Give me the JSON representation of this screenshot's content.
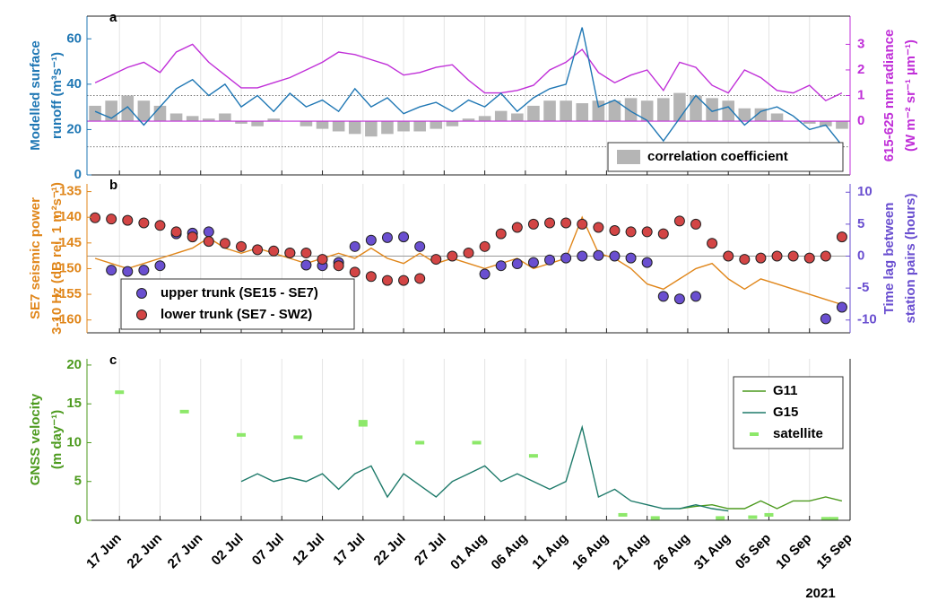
{
  "chart_data": [
    {
      "type": "combo",
      "label": "a",
      "ylabel": [
        "Modelled surface",
        "runoff (m³s⁻¹)"
      ],
      "ycolor": "#1f77b4",
      "y2label": [
        "615-625 nm radiance",
        "(W m⁻² sr⁻¹ µm⁻¹)"
      ],
      "y2color": "#c02fd8",
      "xlim": [
        "2021-06-13",
        "2021-09-15"
      ],
      "xticks": [
        "2021-06-17",
        "2021-06-22",
        "2021-06-27",
        "2021-07-02",
        "2021-07-07",
        "2021-07-12",
        "2021-07-17",
        "2021-07-22",
        "2021-07-27",
        "2021-08-01",
        "2021-08-06",
        "2021-08-11",
        "2021-08-16",
        "2021-08-21",
        "2021-08-26",
        "2021-08-31",
        "2021-09-05",
        "2021-09-10",
        "2021-09-15"
      ],
      "ylim": [
        0,
        70
      ],
      "yticks": [
        0,
        20,
        40,
        60
      ],
      "y2lim": [
        -2.1,
        4.1
      ],
      "y2ticks": [
        0,
        1,
        2,
        3
      ],
      "reference_lines": [
        1,
        -1
      ],
      "reference_style": "dotted",
      "legend": "lower right",
      "x": [
        "2021-06-14",
        "2021-06-16",
        "2021-06-18",
        "2021-06-20",
        "2021-06-22",
        "2021-06-24",
        "2021-06-26",
        "2021-06-28",
        "2021-06-30",
        "2021-07-02",
        "2021-07-04",
        "2021-07-06",
        "2021-07-08",
        "2021-07-10",
        "2021-07-12",
        "2021-07-14",
        "2021-07-16",
        "2021-07-18",
        "2021-07-20",
        "2021-07-22",
        "2021-07-24",
        "2021-07-26",
        "2021-07-28",
        "2021-07-30",
        "2021-08-01",
        "2021-08-03",
        "2021-08-05",
        "2021-08-07",
        "2021-08-09",
        "2021-08-11",
        "2021-08-13",
        "2021-08-15",
        "2021-08-17",
        "2021-08-19",
        "2021-08-21",
        "2021-08-23",
        "2021-08-25",
        "2021-08-27",
        "2021-08-29",
        "2021-08-31",
        "2021-09-02",
        "2021-09-04",
        "2021-09-06",
        "2021-09-08",
        "2021-09-10",
        "2021-09-12",
        "2021-09-14"
      ],
      "series": [
        {
          "name": "correlation coefficient",
          "type": "bar",
          "axis": "y2",
          "color": "#b5b5b5",
          "values": [
            0.6,
            0.8,
            1.0,
            0.8,
            0.6,
            0.3,
            0.2,
            0.1,
            0.3,
            -0.1,
            -0.2,
            0.1,
            0.0,
            -0.2,
            -0.3,
            -0.4,
            -0.5,
            -0.6,
            -0.5,
            -0.4,
            -0.4,
            -0.3,
            -0.2,
            0.1,
            0.2,
            0.4,
            0.3,
            0.6,
            0.8,
            0.8,
            0.7,
            0.8,
            0.8,
            0.9,
            0.8,
            0.9,
            1.1,
            1.0,
            0.9,
            0.8,
            0.5,
            0.5,
            0.3,
            0.0,
            -0.1,
            -0.2,
            -0.3
          ]
        },
        {
          "type": "line",
          "axis": "y2",
          "color": "#c02fd8",
          "values": [
            1.5,
            1.8,
            2.1,
            2.3,
            1.9,
            2.7,
            3.0,
            2.3,
            1.8,
            1.3,
            1.3,
            1.5,
            1.7,
            2.0,
            2.3,
            2.7,
            2.6,
            2.4,
            2.2,
            1.8,
            1.9,
            2.1,
            2.2,
            1.6,
            1.1,
            1.1,
            1.2,
            1.4,
            2.0,
            2.3,
            2.8,
            1.9,
            1.5,
            1.8,
            2.0,
            1.2,
            2.3,
            2.1,
            1.4,
            1.1,
            2.0,
            1.7,
            1.2,
            1.1,
            1.4,
            0.8,
            1.1
          ]
        },
        {
          "type": "line",
          "color": "#1f77b4",
          "values": [
            28,
            25,
            30,
            22,
            30,
            38,
            42,
            35,
            40,
            30,
            35,
            28,
            36,
            30,
            33,
            28,
            38,
            30,
            34,
            27,
            30,
            32,
            28,
            33,
            30,
            36,
            28,
            34,
            38,
            40,
            65,
            30,
            33,
            28,
            24,
            15,
            25,
            35,
            28,
            30,
            22,
            28,
            30,
            26,
            20,
            22,
            13
          ]
        }
      ]
    },
    {
      "type": "combo",
      "label": "b",
      "ylabel": [
        "SE7 seismic power",
        "3-10 Hz (dB rel. 1 m²s⁻¹)"
      ],
      "ycolor": "#e0861a",
      "y2label": [
        "Time lag between",
        "station pairs (hours)"
      ],
      "y2color": "#6a4fd0",
      "xlim": [
        "2021-06-13",
        "2021-09-15"
      ],
      "xticks": [
        "2021-06-17",
        "2021-06-22",
        "2021-06-27",
        "2021-07-02",
        "2021-07-07",
        "2021-07-12",
        "2021-07-17",
        "2021-07-22",
        "2021-07-27",
        "2021-08-01",
        "2021-08-06",
        "2021-08-11",
        "2021-08-16",
        "2021-08-21",
        "2021-08-26",
        "2021-08-31",
        "2021-09-05",
        "2021-09-10",
        "2021-09-15"
      ],
      "ylim": [
        -162.5,
        -133.5
      ],
      "yticks": [
        -160,
        -155,
        -150,
        -145,
        -140,
        -135
      ],
      "y2lim": [
        -12,
        11.3
      ],
      "y2ticks": [
        -10,
        -5,
        0,
        5,
        10
      ],
      "reference_lines": [
        0
      ],
      "reference_style": "solid",
      "legend": "lower left",
      "x": [
        "2021-06-14",
        "2021-06-16",
        "2021-06-18",
        "2021-06-20",
        "2021-06-22",
        "2021-06-24",
        "2021-06-26",
        "2021-06-28",
        "2021-06-30",
        "2021-07-02",
        "2021-07-04",
        "2021-07-06",
        "2021-07-08",
        "2021-07-10",
        "2021-07-12",
        "2021-07-14",
        "2021-07-16",
        "2021-07-18",
        "2021-07-20",
        "2021-07-22",
        "2021-07-24",
        "2021-07-26",
        "2021-07-28",
        "2021-07-30",
        "2021-08-01",
        "2021-08-03",
        "2021-08-05",
        "2021-08-07",
        "2021-08-09",
        "2021-08-11",
        "2021-08-13",
        "2021-08-15",
        "2021-08-17",
        "2021-08-19",
        "2021-08-21",
        "2021-08-23",
        "2021-08-25",
        "2021-08-27",
        "2021-08-29",
        "2021-08-31",
        "2021-09-02",
        "2021-09-04",
        "2021-09-06",
        "2021-09-08",
        "2021-09-10",
        "2021-09-12",
        "2021-09-14"
      ],
      "series": [
        {
          "type": "line",
          "color": "#e0861a",
          "values": [
            -148,
            -149,
            -150,
            -149,
            -148,
            -147,
            -146,
            -144,
            -146,
            -147,
            -146,
            -147,
            -148,
            -149,
            -148,
            -147,
            -148,
            -146,
            -148,
            -149,
            -147,
            -149,
            -148,
            -149,
            -150,
            -149,
            -148,
            -150,
            -149,
            -148,
            -140,
            -147,
            -148,
            -150,
            -153,
            -154,
            -152,
            -150,
            -149,
            -152,
            -154,
            -152,
            -153,
            -154,
            -155,
            -156,
            -157
          ]
        },
        {
          "name": "upper trunk (SE15 - SE7)",
          "type": "scatter",
          "axis": "y2",
          "color": "#6a4fd0",
          "values": [
            null,
            -2.2,
            -2.4,
            -2.2,
            -1.5,
            3.5,
            3.6,
            3.8,
            null,
            null,
            null,
            null,
            0.5,
            -1.4,
            -1.5,
            -1.0,
            1.5,
            2.5,
            2.9,
            3.0,
            1.5,
            null,
            null,
            null,
            -2.8,
            -1.5,
            -1.2,
            -1.0,
            -0.6,
            -0.3,
            0,
            0.1,
            0,
            -0.3,
            -1.0,
            -6.3,
            -6.7,
            -6.3,
            null,
            null,
            null,
            null,
            null,
            null,
            null,
            -9.8,
            -8.0
          ]
        },
        {
          "name": "lower trunk (SE7 - SW2)",
          "type": "scatter",
          "axis": "y2",
          "color": "#d34545",
          "values": [
            6.0,
            5.8,
            5.6,
            5.2,
            4.8,
            3.8,
            3.0,
            2.3,
            2.0,
            1.5,
            1.0,
            0.8,
            0.5,
            0.5,
            -0.5,
            -1.5,
            -2.5,
            -3.2,
            -3.8,
            -3.8,
            -3.5,
            -0.5,
            0.0,
            0.5,
            1.5,
            3.5,
            4.5,
            5.0,
            5.2,
            5.2,
            5.0,
            4.5,
            4.0,
            3.8,
            3.8,
            3.5,
            5.5,
            5.0,
            2.0,
            0.0,
            -0.5,
            -0.3,
            0,
            0,
            -0.3,
            0.0,
            3.0
          ]
        }
      ]
    },
    {
      "type": "combo",
      "label": "c",
      "ylabel": [
        "GNSS velocity",
        "(m day⁻¹)"
      ],
      "ycolor": "#4c9a1e",
      "xlabel": "2021",
      "xlim": [
        "2021-06-13",
        "2021-09-15"
      ],
      "xticks": [
        {
          "value": "2021-06-17",
          "label": "17 Jun"
        },
        {
          "value": "2021-06-22",
          "label": "22 Jun"
        },
        {
          "value": "2021-06-27",
          "label": "27 Jun"
        },
        {
          "value": "2021-07-02",
          "label": "02 Jul"
        },
        {
          "value": "2021-07-07",
          "label": "07 Jul"
        },
        {
          "value": "2021-07-12",
          "label": "12 Jul"
        },
        {
          "value": "2021-07-17",
          "label": "17 Jul"
        },
        {
          "value": "2021-07-22",
          "label": "22 Jul"
        },
        {
          "value": "2021-07-27",
          "label": "27 Jul"
        },
        {
          "value": "2021-08-01",
          "label": "01 Aug"
        },
        {
          "value": "2021-08-06",
          "label": "06 Aug"
        },
        {
          "value": "2021-08-11",
          "label": "11 Aug"
        },
        {
          "value": "2021-08-16",
          "label": "16 Aug"
        },
        {
          "value": "2021-08-21",
          "label": "21 Aug"
        },
        {
          "value": "2021-08-26",
          "label": "26 Aug"
        },
        {
          "value": "2021-08-31",
          "label": "31 Aug"
        },
        {
          "value": "2021-09-05",
          "label": "05 Sep"
        },
        {
          "value": "2021-09-10",
          "label": "10 Sep"
        },
        {
          "value": "2021-09-15",
          "label": "15 Sep"
        }
      ],
      "ylim": [
        0,
        20.8
      ],
      "yticks": [
        0,
        5,
        10,
        15,
        20
      ],
      "legend": "upper right",
      "x": [
        "2021-06-14",
        "2021-06-16",
        "2021-06-18",
        "2021-06-20",
        "2021-06-22",
        "2021-06-24",
        "2021-06-26",
        "2021-06-28",
        "2021-06-30",
        "2021-07-02",
        "2021-07-04",
        "2021-07-06",
        "2021-07-08",
        "2021-07-10",
        "2021-07-12",
        "2021-07-14",
        "2021-07-16",
        "2021-07-18",
        "2021-07-20",
        "2021-07-22",
        "2021-07-24",
        "2021-07-26",
        "2021-07-28",
        "2021-07-30",
        "2021-08-01",
        "2021-08-03",
        "2021-08-05",
        "2021-08-07",
        "2021-08-09",
        "2021-08-11",
        "2021-08-13",
        "2021-08-15",
        "2021-08-17",
        "2021-08-19",
        "2021-08-21",
        "2021-08-23",
        "2021-08-25",
        "2021-08-27",
        "2021-08-29",
        "2021-08-31",
        "2021-09-02",
        "2021-09-04",
        "2021-09-06",
        "2021-09-08",
        "2021-09-10",
        "2021-09-12",
        "2021-09-14"
      ],
      "series": [
        {
          "name": "G11",
          "type": "line",
          "color": "#4c9a1e",
          "values": [
            null,
            null,
            null,
            null,
            null,
            null,
            null,
            null,
            null,
            null,
            null,
            null,
            null,
            null,
            null,
            null,
            null,
            null,
            null,
            null,
            null,
            null,
            null,
            null,
            null,
            null,
            null,
            null,
            null,
            null,
            null,
            null,
            null,
            null,
            null,
            null,
            1.5,
            1.8,
            2,
            1.5,
            1.5,
            2.5,
            1.5,
            2.5,
            2.5,
            3,
            2.5
          ]
        },
        {
          "name": "G15",
          "type": "line",
          "color": "#1e7a6a",
          "values": [
            null,
            null,
            null,
            null,
            null,
            null,
            null,
            null,
            null,
            5,
            6,
            5,
            5.5,
            5,
            6,
            4,
            6,
            7,
            3,
            6,
            4.5,
            3,
            5,
            6,
            7,
            5,
            6,
            5,
            4,
            5,
            12,
            3,
            4,
            2.5,
            2,
            1.5,
            1.5,
            2,
            1.5,
            1.2,
            null,
            null,
            null,
            null,
            null,
            null,
            null
          ]
        },
        {
          "name": "satellite",
          "type": "scatter",
          "marker": "dash",
          "color": "#8de86a",
          "x": [
            "2021-06-17",
            "2021-06-25",
            "2021-07-02",
            "2021-07-09",
            "2021-07-17",
            "2021-07-17",
            "2021-07-24",
            "2021-07-31",
            "2021-08-07",
            "2021-08-18",
            "2021-08-22",
            "2021-08-30",
            "2021-09-03",
            "2021-09-05",
            "2021-09-12",
            "2021-09-13"
          ],
          "values": [
            16.5,
            14.0,
            11.0,
            10.7,
            12.7,
            12.3,
            10.0,
            10.0,
            8.3,
            0.7,
            0.3,
            0.3,
            0.4,
            0.7,
            0.2,
            0.2
          ]
        }
      ]
    }
  ]
}
